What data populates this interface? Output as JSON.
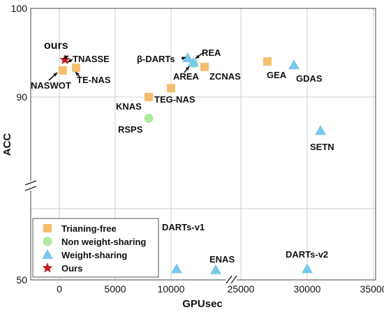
{
  "chart_data": {
    "type": "scatter",
    "xlabel": "GPUsec",
    "ylabel": "ACC",
    "x_ticks": [
      "0",
      "5000",
      "10000",
      "25000",
      "30000",
      "35000"
    ],
    "y_ticks": [
      "50",
      "90",
      "100"
    ],
    "grid": true,
    "x_axis_break": true,
    "y_axis_break": true,
    "legend_position": "bottom-left",
    "categories": {
      "trainingfree": {
        "name": "Trianing-free",
        "color": "#F5BE6E",
        "marker": "square"
      },
      "nonws": {
        "name": "Non weight-sharing",
        "color": "#AEEAA0",
        "marker": "circle"
      },
      "ws": {
        "name": "Weight-sharing",
        "color": "#78C8EE",
        "marker": "triangle"
      },
      "ours": {
        "name": "Ours",
        "color": "#C8181E",
        "marker": "star"
      }
    },
    "series": [
      {
        "category": "trainingfree",
        "points": [
          {
            "label": "NASWOT",
            "x": 300,
            "y": 93.0
          },
          {
            "label": "TE-NAS",
            "x": 1500,
            "y": 93.3
          },
          {
            "label": "KNAS",
            "x": 8000,
            "y": 90.0
          },
          {
            "label": "TEG-NAS",
            "x": 10000,
            "y": 91.0
          },
          {
            "label": "ZCNAS",
            "x": 13000,
            "y": 93.4
          },
          {
            "label": "GEA",
            "x": 27000,
            "y": 94.0
          }
        ]
      },
      {
        "category": "nonws",
        "points": [
          {
            "label": "RSPS",
            "x": 8000,
            "y": 87.6
          },
          {
            "label": "REA",
            "x": 12000,
            "y": 93.8
          }
        ]
      },
      {
        "category": "ws",
        "points": [
          {
            "label": "β-DARTs",
            "x": 11500,
            "y": 94.4
          },
          {
            "label": "AREA",
            "x": 12000,
            "y": 93.9
          },
          {
            "label": "GDAS",
            "x": 29000,
            "y": 93.6
          },
          {
            "label": "SETN",
            "x": 31000,
            "y": 86.2
          },
          {
            "label": "DARTs-v1",
            "x": 10500,
            "y": 54.6
          },
          {
            "label": "ENAS",
            "x": 14000,
            "y": 54.2
          },
          {
            "label": "DARTs-v2",
            "x": 30000,
            "y": 54.6
          }
        ]
      },
      {
        "category": "ours",
        "points": [
          {
            "label": "TNASSE",
            "x": 500,
            "y": 94.2
          }
        ]
      }
    ],
    "annotations": [
      "ours"
    ]
  }
}
